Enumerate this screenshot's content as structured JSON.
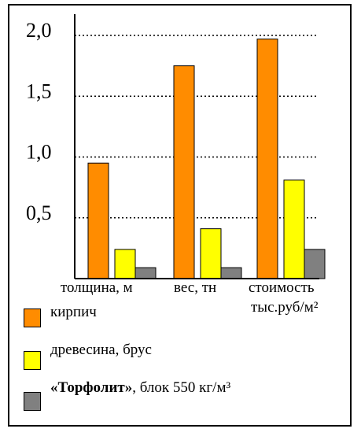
{
  "chart_data": {
    "type": "bar",
    "categories": [
      "толщина, м",
      "вес, тн",
      "стоимость"
    ],
    "category_sublabel": "тыс.руб/м²",
    "yticks": [
      "2,0",
      "1,5",
      "1,0",
      "0,5"
    ],
    "ytick_values": [
      2.0,
      1.5,
      1.0,
      0.5
    ],
    "ylim": [
      0,
      2.1
    ],
    "grid": "dotted-horizontal",
    "series": [
      {
        "name": "кирпич",
        "color": "#ff8c00",
        "values": [
          0.95,
          1.75,
          1.97
        ]
      },
      {
        "name": "древесина, брус",
        "color": "#ffff00",
        "values": [
          0.24,
          0.41,
          0.81
        ]
      },
      {
        "name": "«Торфолит», блок 550 кг/м³",
        "color": "#808080",
        "values": [
          0.09,
          0.09,
          0.24
        ]
      }
    ]
  },
  "legend": {
    "item1": "кирпич",
    "item2": "древесина, брус",
    "item3_bold": "«Торфолит»",
    "item3_rest": ", блок  550 кг/м³"
  }
}
